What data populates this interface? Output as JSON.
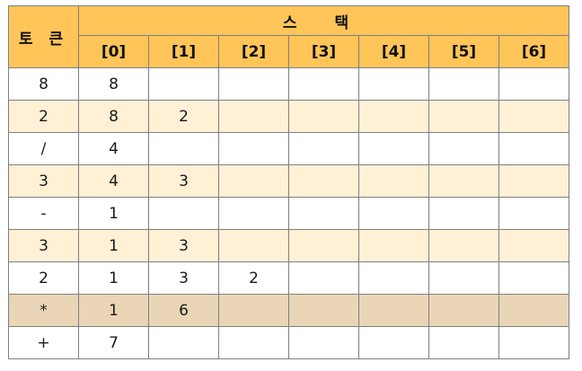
{
  "header": {
    "token_label": "토 큰",
    "stack_label": "스 택",
    "indices": [
      "[0]",
      "[1]",
      "[2]",
      "[3]",
      "[4]",
      "[5]",
      "[6]"
    ]
  },
  "rows": [
    {
      "token": "8",
      "stack": [
        "8",
        "",
        "",
        "",
        "",
        "",
        ""
      ],
      "shade": "white"
    },
    {
      "token": "2",
      "stack": [
        "8",
        "2",
        "",
        "",
        "",
        "",
        ""
      ],
      "shade": "light"
    },
    {
      "token": "/",
      "stack": [
        "4",
        "",
        "",
        "",
        "",
        "",
        ""
      ],
      "shade": "white"
    },
    {
      "token": "3",
      "stack": [
        "4",
        "3",
        "",
        "",
        "",
        "",
        ""
      ],
      "shade": "light"
    },
    {
      "token": "-",
      "stack": [
        "1",
        "",
        "",
        "",
        "",
        "",
        ""
      ],
      "shade": "white"
    },
    {
      "token": "3",
      "stack": [
        "1",
        "3",
        "",
        "",
        "",
        "",
        ""
      ],
      "shade": "light"
    },
    {
      "token": "2",
      "stack": [
        "1",
        "3",
        "2",
        "",
        "",
        "",
        ""
      ],
      "shade": "white"
    },
    {
      "token": "*",
      "stack": [
        "1",
        "6",
        "",
        "",
        "",
        "",
        ""
      ],
      "shade": "hilite"
    },
    {
      "token": "+",
      "stack": [
        "7",
        "",
        "",
        "",
        "",
        "",
        ""
      ],
      "shade": "white"
    }
  ],
  "colors": {
    "header_bg": "#ffc559",
    "row_light": "#fff0d6",
    "row_hilite": "#ead6b7",
    "border": "#7f7f7f"
  }
}
